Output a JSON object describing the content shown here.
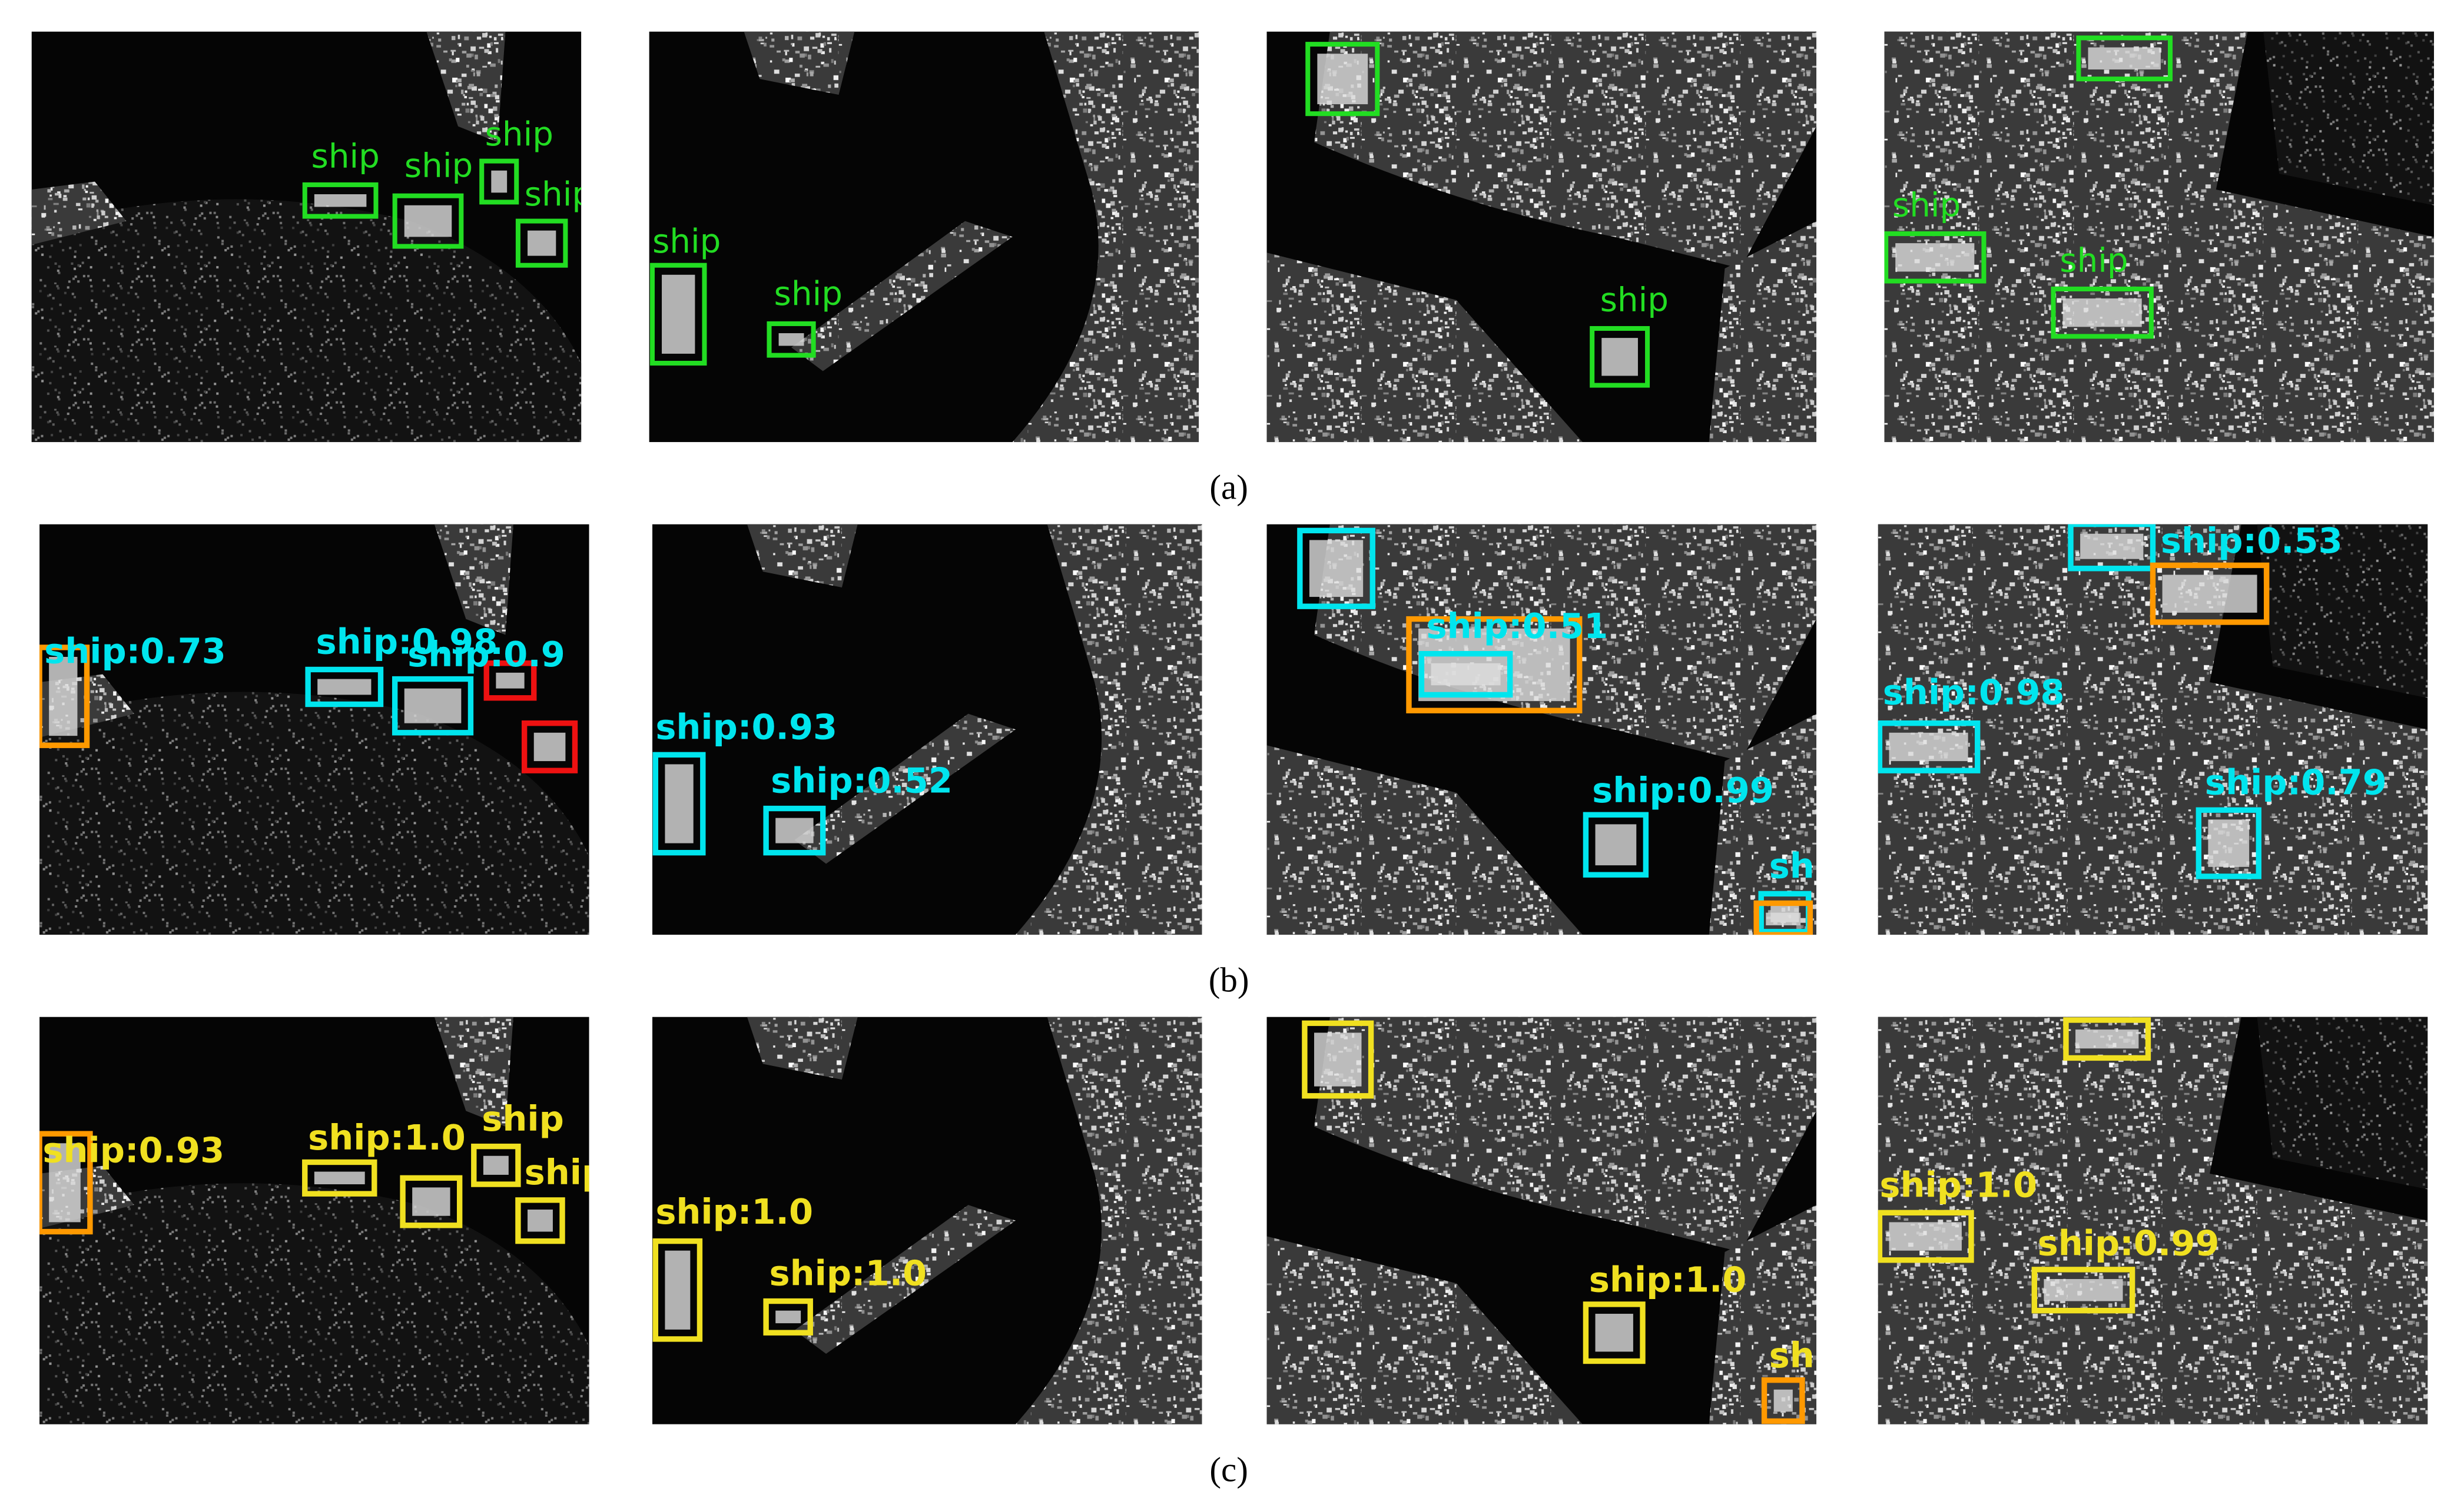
{
  "rows": [
    {
      "caption": "(a)",
      "panels": [
        {
          "labels": [
            "ship",
            "ship",
            "ship",
            "ship"
          ]
        },
        {
          "labels": [
            "ship",
            "ship"
          ]
        },
        {
          "labels": [
            "ship"
          ]
        },
        {
          "labels": [
            "ship",
            "ship"
          ]
        }
      ]
    },
    {
      "caption": "(b)",
      "panels": [
        {
          "labels": [
            "ship:0.73",
            "ship:0.98",
            "ship:0.9"
          ]
        },
        {
          "labels": [
            "ship:0.93",
            "ship:0.52"
          ]
        },
        {
          "labels": [
            "ship:0.51",
            "ship:0.99",
            "sh"
          ]
        },
        {
          "labels": [
            "ship:0.53",
            "ship:0.98",
            "ship:0.79"
          ]
        }
      ]
    },
    {
      "caption": "(c)",
      "panels": [
        {
          "labels": [
            "ship:0.93",
            "ship:1.0",
            "ship",
            "ship"
          ]
        },
        {
          "labels": [
            "ship:1.0",
            "ship:1.0"
          ]
        },
        {
          "labels": [
            "ship:1.0",
            "sh"
          ]
        },
        {
          "labels": [
            "ship:1.0",
            "ship:0.99"
          ]
        }
      ]
    }
  ]
}
